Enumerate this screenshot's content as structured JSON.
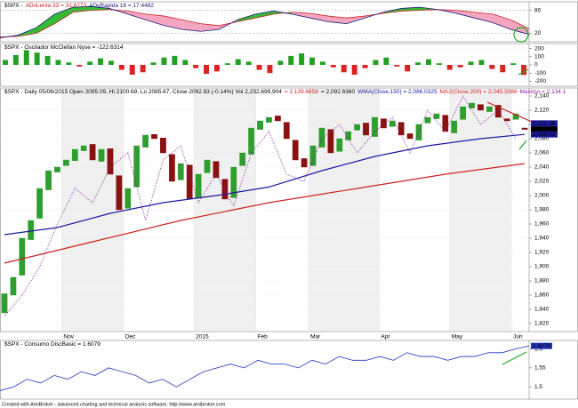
{
  "chart_data": [
    {
      "type": "oscillator-pair",
      "title": "$SPX -",
      "ylim": [
        0,
        100
      ],
      "yticks": [
        20,
        80
      ],
      "series": [
        {
          "name": "ADvLenta 33 = 31.6773",
          "color": "#cc2222",
          "values": [
            10,
            12,
            20,
            45,
            75,
            80,
            82,
            78,
            70,
            65,
            55,
            45,
            40,
            50,
            60,
            70,
            75,
            72,
            65,
            60,
            65,
            72,
            78,
            80,
            82,
            80,
            75,
            70,
            55,
            32
          ]
        },
        {
          "name": "ADvRapida 18 = 17.4482",
          "color": "#1a1a80",
          "values": [
            8,
            15,
            35,
            70,
            88,
            90,
            85,
            70,
            55,
            40,
            30,
            25,
            30,
            55,
            70,
            78,
            70,
            60,
            50,
            45,
            60,
            75,
            85,
            88,
            82,
            72,
            60,
            48,
            30,
            17
          ]
        }
      ],
      "up_color": "#33bb33",
      "down_color": "#f4a6c0"
    },
    {
      "type": "histogram",
      "title": "$SPX - Oscilador McClellan Nyse = -122.6314",
      "ylim": [
        -250,
        250
      ],
      "yticks": [
        200,
        100,
        0,
        -100,
        -200
      ],
      "pos_color": "#22a022",
      "neg_color": "#dd2222",
      "values": [
        60,
        120,
        180,
        150,
        110,
        60,
        30,
        -20,
        40,
        80,
        50,
        -60,
        -120,
        -90,
        30,
        90,
        110,
        60,
        -40,
        -110,
        -80,
        20,
        70,
        40,
        -60,
        -100,
        50,
        110,
        140,
        90,
        40,
        -30,
        -90,
        -120,
        -40,
        60,
        90,
        -20,
        -80,
        30,
        70,
        20,
        -60,
        -30,
        40,
        60,
        -50,
        -90,
        20,
        -123
      ]
    },
    {
      "type": "candlestick",
      "title": "$SPX - Daily 05/06/2015 Open 2095.09, Hi 2100.69, Lo 2085.67, Close 2092.83 (-0.14%) Vol 2,232,699,904",
      "notes": [
        {
          "text": "= 2,139.6858",
          "color": "#cc2222"
        },
        {
          "text": "= 2,092.6360",
          "color": "#000000"
        }
      ],
      "ylim": [
        1810,
        2150
      ],
      "yticks": [
        {
          "value": 1820,
          "label": "1,820"
        },
        {
          "value": 1840,
          "label": "1,840"
        },
        {
          "value": 1860,
          "label": "1,860"
        },
        {
          "value": 1880,
          "label": "1,880"
        },
        {
          "value": 1900,
          "label": "1,900"
        },
        {
          "value": 1920,
          "label": "1,920"
        },
        {
          "value": 1940,
          "label": "1,940"
        },
        {
          "value": 1960,
          "label": "1,960"
        },
        {
          "value": 1980,
          "label": "1,980"
        },
        {
          "value": 2000,
          "label": "2,000"
        },
        {
          "value": 2020,
          "label": "2,020"
        },
        {
          "value": 2040,
          "label": "2,040"
        },
        {
          "value": 2060,
          "label": "2,060"
        },
        {
          "value": 2080,
          "label": "2,080"
        },
        {
          "value": 2100,
          "label": "2,100"
        },
        {
          "value": 2120,
          "label": "2,120"
        },
        {
          "value": 2140,
          "label": "2,140"
        }
      ],
      "xlim": [
        0,
        60
      ],
      "xticks": [
        {
          "value": 7,
          "label": "Nov"
        },
        {
          "value": 14,
          "label": "Dec"
        },
        {
          "value": 22,
          "label": "2015"
        },
        {
          "value": 29,
          "label": "Feb"
        },
        {
          "value": 35,
          "label": "Mar"
        },
        {
          "value": 43,
          "label": "Apr"
        },
        {
          "value": 51,
          "label": "May"
        },
        {
          "value": 58,
          "label": "Jun"
        }
      ],
      "up_color": "#2e9e2e",
      "down_color": "#8b1010",
      "open": [
        1835,
        1860,
        1888,
        1938,
        1968,
        2008,
        2033,
        2042,
        2049,
        2063,
        2072,
        2048,
        2066,
        2028,
        1982,
        2012,
        2068,
        2086,
        2081,
        2058,
        2022,
        2043,
        1997,
        2032,
        2048,
        2023,
        1997,
        2042,
        2058,
        2093,
        2103,
        2112,
        2103,
        2078,
        2052,
        2042,
        2068,
        2093,
        2062,
        2078,
        2092,
        2102,
        2083,
        2108,
        2097,
        2103,
        2087,
        2078,
        2102,
        2108,
        2113,
        2088,
        2107,
        2123,
        2128,
        2118,
        2127,
        2108,
        2107,
        2095
      ],
      "close": [
        1862,
        1885,
        1940,
        1965,
        2010,
        2035,
        2040,
        2050,
        2065,
        2070,
        2050,
        2065,
        2030,
        1980,
        2010,
        2070,
        2085,
        2080,
        2060,
        2020,
        2045,
        1995,
        2030,
        2050,
        2025,
        1995,
        2040,
        2060,
        2095,
        2105,
        2110,
        2105,
        2080,
        2050,
        2040,
        2070,
        2095,
        2060,
        2080,
        2090,
        2100,
        2085,
        2110,
        2095,
        2105,
        2085,
        2080,
        2100,
        2110,
        2115,
        2090,
        2105,
        2125,
        2130,
        2120,
        2125,
        2110,
        2105,
        2115,
        2093
      ],
      "series": [
        {
          "name": "WMA(Close,150) = 2,086.0325",
          "color": "#1a1aa0",
          "style": "solid",
          "x": [
            0,
            6,
            12,
            18,
            24,
            30,
            36,
            42,
            48,
            54,
            59
          ],
          "values": [
            1945,
            1955,
            1975,
            1990,
            2000,
            2012,
            2035,
            2055,
            2070,
            2080,
            2086
          ]
        },
        {
          "name": "MA2(Close,200) = 2,045.3086",
          "color": "#cc2222",
          "style": "solid",
          "x": [
            0,
            10,
            20,
            30,
            40,
            50,
            59
          ],
          "values": [
            1905,
            1935,
            1965,
            1990,
            2010,
            2030,
            2045
          ]
        },
        {
          "name": "Maximo = 2,134.1",
          "color": "#8a1aa0",
          "style": "dotted",
          "x": [
            0,
            2,
            4,
            6,
            8,
            10,
            12,
            14,
            16,
            18,
            20,
            22,
            24,
            26,
            28,
            30,
            32,
            34,
            36,
            38,
            40,
            42,
            44,
            46,
            48,
            50,
            52,
            54,
            56,
            58
          ],
          "values": [
            1830,
            1860,
            1900,
            1960,
            2010,
            1990,
            2040,
            2060,
            1965,
            2050,
            2070,
            1990,
            2030,
            1985,
            2060,
            2090,
            2030,
            2020,
            2080,
            2100,
            2060,
            2090,
            2110,
            2060,
            2120,
            2090,
            2140,
            2100,
            2120,
            2080
          ]
        }
      ],
      "last_labels": [
        {
          "value": 2101.38,
          "label": "2,101.38",
          "color": "#1a1aa0"
        },
        {
          "value": 2092.83,
          "label": "2,092.83",
          "color": "#000000"
        },
        {
          "value": 2086.03,
          "label": "2,086.03",
          "color": "#1a1aa0"
        }
      ]
    },
    {
      "type": "line",
      "title": "$SPX - Consumo DiscBasic = 1.6079",
      "ylim": [
        1.47,
        1.62
      ],
      "yticks": [
        1.5,
        1.55,
        1.6
      ],
      "color": "#2233bb",
      "values": [
        1.49,
        1.5,
        1.52,
        1.51,
        1.53,
        1.52,
        1.54,
        1.53,
        1.55,
        1.54,
        1.53,
        1.51,
        1.52,
        1.5,
        1.52,
        1.54,
        1.55,
        1.56,
        1.55,
        1.57,
        1.56,
        1.56,
        1.55,
        1.57,
        1.56,
        1.58,
        1.57,
        1.57,
        1.58,
        1.57,
        1.59,
        1.58,
        1.58,
        1.57,
        1.58,
        1.58,
        1.59,
        1.59,
        1.6,
        1.6079
      ],
      "last_label": {
        "value": 1.6079,
        "label": "1.6079"
      }
    }
  ],
  "footer": "Created with AmiBroker - advanced charting and technical analysis software. http://www.amibroker.com"
}
